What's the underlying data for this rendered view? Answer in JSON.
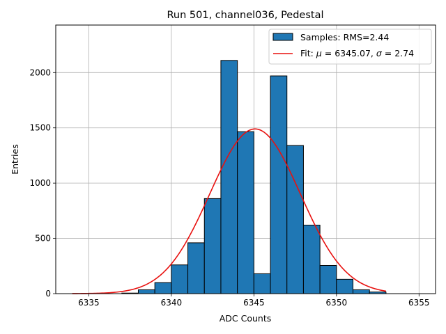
{
  "chart_data": {
    "type": "bar",
    "title": "Run 501, channel036, Pedestal",
    "xlabel": "ADC Counts",
    "ylabel": "Entries",
    "xlim": [
      6333.0,
      6356.0
    ],
    "ylim": [
      0,
      2430
    ],
    "grid": true,
    "legend_position": "top-right",
    "x_ticks": [
      6335,
      6340,
      6345,
      6350,
      6355
    ],
    "y_ticks": [
      0,
      500,
      1000,
      1500,
      2000
    ],
    "bin_width": 1,
    "bins": [
      {
        "left": 6337,
        "count": 5
      },
      {
        "left": 6338,
        "count": 35
      },
      {
        "left": 6339,
        "count": 100
      },
      {
        "left": 6340,
        "count": 260
      },
      {
        "left": 6341,
        "count": 460
      },
      {
        "left": 6342,
        "count": 860
      },
      {
        "left": 6343,
        "count": 2110
      },
      {
        "left": 6344,
        "count": 1465
      },
      {
        "left": 6345,
        "count": 180
      },
      {
        "left": 6346,
        "count": 1970
      },
      {
        "left": 6347,
        "count": 1340
      },
      {
        "left": 6348,
        "count": 620
      },
      {
        "left": 6349,
        "count": 255
      },
      {
        "left": 6350,
        "count": 130
      },
      {
        "left": 6351,
        "count": 35
      },
      {
        "left": 6352,
        "count": 15
      }
    ],
    "fit": {
      "mu": 6345.07,
      "sigma": 2.74,
      "amplitude": 1490,
      "x_range": [
        6334.0,
        6353.0
      ]
    },
    "series": [
      {
        "name": "Samples: RMS=2.44",
        "type": "histogram",
        "color": "#1f77b4",
        "edge_color": "#000000"
      },
      {
        "name": "Fit",
        "type": "line",
        "color": "#e8110f"
      }
    ],
    "legend": {
      "samples": "Samples: RMS=2.44",
      "fit_prefix": "Fit: ",
      "mu_symbol": "μ",
      "mu_text": " = 6345.07, ",
      "sigma_symbol": "σ",
      "sigma_text": " = 2.74"
    }
  }
}
